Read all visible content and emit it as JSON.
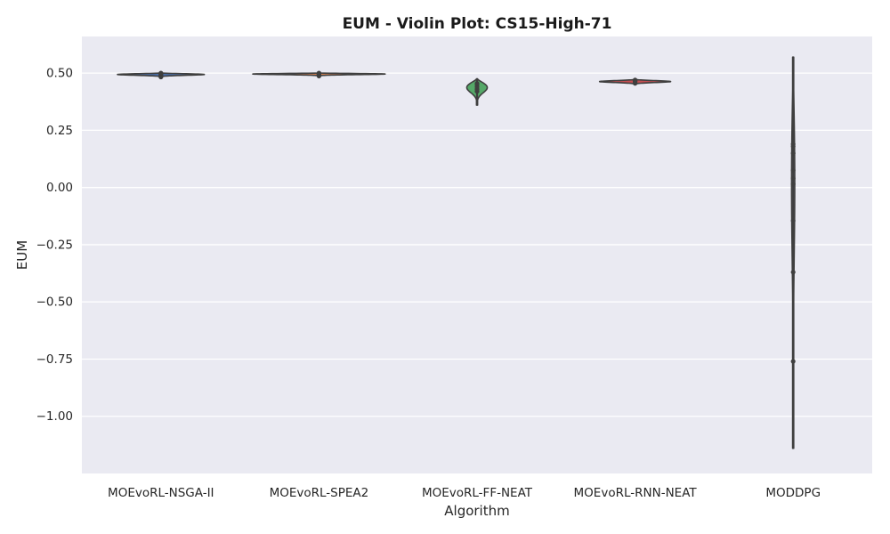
{
  "chart_data": {
    "type": "violin",
    "title": "EUM - Violin Plot: CS15-High-71",
    "xlabel": "Algorithm",
    "ylabel": "EUM",
    "ylim": [
      -1.25,
      0.66
    ],
    "yticks": [
      0.5,
      0.25,
      0.0,
      -0.25,
      -0.5,
      -0.75,
      -1.0
    ],
    "ytick_labels": [
      "0.50",
      "0.25",
      "0.00",
      "−0.25",
      "−0.50",
      "−0.75",
      "−1.00"
    ],
    "grid": true,
    "background": "#EAEAF2",
    "categories": [
      "MOEvoRL-NSGA-II",
      "MOEvoRL-SPEA2",
      "MOEvoRL-FF-NEAT",
      "MOEvoRL-RNN-NEAT",
      "MODDPG"
    ],
    "series": [
      {
        "color": "#4C72B0",
        "min": 0.483,
        "max": 0.5,
        "median": 0.494,
        "points": [
          0.483,
          0.487,
          0.49,
          0.493,
          0.495,
          0.497,
          0.5
        ],
        "half_width": 0.55
      },
      {
        "color": "#DD8452",
        "min": 0.487,
        "max": 0.5,
        "median": 0.496,
        "points": [
          0.487,
          0.49,
          0.494,
          0.496,
          0.497,
          0.499,
          0.5
        ],
        "half_width": 0.84
      },
      {
        "color": "#55A868",
        "min": 0.36,
        "max": 0.475,
        "median": 0.437,
        "points": [
          0.42,
          0.43,
          0.44,
          0.45,
          0.455
        ],
        "half_width": 0.13
      },
      {
        "color": "#C44E52",
        "min": 0.452,
        "max": 0.472,
        "median": 0.463,
        "points": [
          0.455,
          0.46,
          0.463,
          0.466,
          0.47
        ],
        "half_width": 0.45
      },
      {
        "color": "#8172B3",
        "min": -1.14,
        "max": 0.57,
        "median": 0.02,
        "points": [
          0.19,
          0.18,
          0.15,
          0.075,
          0.04,
          0.015,
          -0.145,
          -0.37,
          -0.76
        ],
        "half_width": 0.02
      }
    ]
  }
}
